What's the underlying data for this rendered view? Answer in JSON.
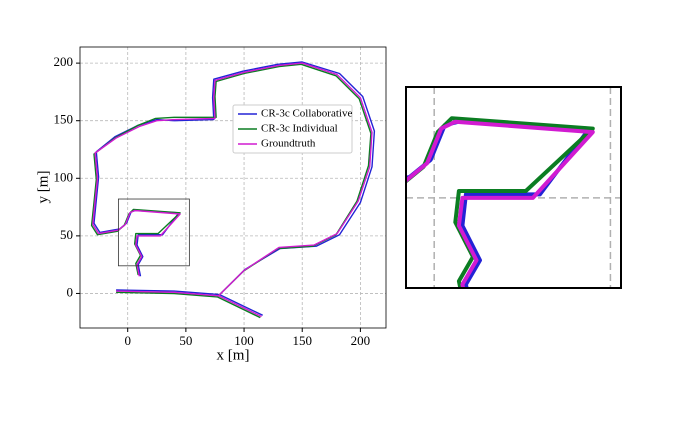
{
  "chart_data": [
    {
      "type": "trajectory",
      "xlabel": "x [m]",
      "ylabel": "y [m]",
      "xlim": [
        -41,
        222
      ],
      "ylim": [
        -30,
        214
      ],
      "xticks": [
        0,
        50,
        100,
        150,
        200
      ],
      "yticks": [
        0,
        50,
        100,
        150,
        200
      ],
      "grid": true,
      "legend_loc": "upper center",
      "series": [
        {
          "name": "CR-3c Collaborative",
          "color": "#2323d6",
          "x": [
            -10,
            40,
            79,
            101,
            131,
            162,
            182,
            200,
            210,
            212,
            202,
            182,
            150,
            129,
            99,
            74,
            73,
            74,
            40,
            25,
            9,
            -11,
            -27,
            -25,
            -27,
            -29,
            -24,
            -7,
            -1,
            3,
            7,
            44,
            30,
            9,
            8,
            13,
            9,
            11,
            null,
            79,
            116
          ],
          "y": [
            3,
            2,
            -1,
            21,
            39,
            41,
            51,
            79,
            110,
            141,
            171,
            191,
            201,
            199,
            193,
            186,
            170,
            151,
            150,
            151,
            146,
            136,
            123,
            101,
            81,
            61,
            53,
            56,
            61,
            71,
            72,
            70,
            51,
            51,
            42,
            32,
            25,
            15,
            null,
            -1,
            -19
          ]
        },
        {
          "name": "CR-3c Individual",
          "color": "#0b7d22",
          "x": [
            -10,
            40,
            77,
            99,
            129,
            159,
            179,
            197,
            207,
            209,
            199,
            179,
            149,
            130,
            100,
            76,
            75,
            76,
            40,
            24,
            9,
            -11,
            -29,
            -27,
            -29,
            -31,
            -26,
            -9,
            -3,
            1,
            5,
            45,
            26,
            7,
            6,
            11,
            7,
            9,
            null,
            77,
            114
          ],
          "y": [
            1,
            0,
            -3,
            19,
            39,
            41,
            51,
            80,
            111,
            139,
            169,
            189,
            199,
            197,
            191,
            184,
            171,
            153,
            153,
            152,
            146,
            135,
            121,
            99,
            79,
            59,
            51,
            54,
            59,
            69,
            73,
            70,
            52,
            52,
            43,
            33,
            26,
            16,
            null,
            -3,
            -21
          ]
        },
        {
          "name": "Groundtruth",
          "color": "#d11bd1",
          "x": [
            -10,
            40,
            78,
            100,
            130,
            160,
            180,
            198,
            208,
            210,
            200,
            180,
            150,
            130,
            100,
            75,
            74,
            75,
            40,
            25,
            10,
            -10,
            -28,
            -26,
            -28,
            -30,
            -25,
            -8,
            -2,
            2,
            6,
            45,
            28,
            8,
            7,
            12,
            8,
            10,
            null,
            78,
            115
          ],
          "y": [
            2,
            1,
            -2,
            20,
            40,
            42,
            52,
            80,
            110,
            140,
            170,
            190,
            200,
            198,
            192,
            185,
            170,
            152,
            151,
            150,
            145,
            135,
            122,
            100,
            80,
            60,
            52,
            55,
            60,
            70,
            72,
            69,
            50,
            50,
            42,
            32,
            25,
            15,
            null,
            -2,
            -20
          ]
        }
      ]
    },
    {
      "type": "inset",
      "xlim": [
        -8,
        53
      ],
      "ylim": [
        24,
        82
      ],
      "grid_x": [
        0,
        50
      ],
      "grid_y": [
        50
      ]
    }
  ]
}
